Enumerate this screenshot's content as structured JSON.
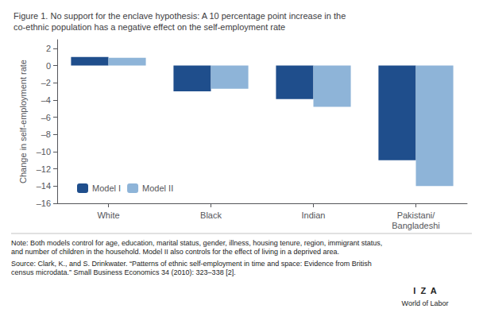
{
  "chart_data": {
    "type": "bar",
    "title": "Figure 1. No support for the enclave hypothesis: A 10 percentage point increase in the\nco-ethnic population has a negative effect on the self-employment rate",
    "ylabel": "Change in self-employment rate",
    "categories": [
      "White",
      "Black",
      "Indian",
      "Pakistani/\nBangladeshi"
    ],
    "series": [
      {
        "name": "Model I",
        "color": "#1F4E8C",
        "values": [
          1.0,
          -3.0,
          -3.9,
          -11.0
        ]
      },
      {
        "name": "Model II",
        "color": "#8EB4D8",
        "values": [
          0.9,
          -2.7,
          -4.8,
          -14.0
        ]
      }
    ],
    "ylim": [
      -16,
      3
    ],
    "yticks": [
      2,
      0,
      {
        "value": -2,
        "label": "–2"
      },
      {
        "value": -4,
        "label": "–4"
      },
      {
        "value": -6,
        "label": "–6"
      },
      {
        "value": -8,
        "label": "–8"
      },
      {
        "value": -10,
        "label": "–10"
      },
      {
        "value": -12,
        "label": "–12"
      },
      {
        "value": -14,
        "label": "–14"
      },
      {
        "value": -16,
        "label": "–16"
      }
    ],
    "grid": false,
    "legend": "lower left",
    "annotations": [
      "Note: Both models control for age, education, marital status, gender, illness, housing tenure, region, immigrant status,\nand number of children in the household. Model II also controls for the effect of living in a deprived area.",
      "Source: Clark, K., and S. Drinkwater. “Patterns of ethnic self-employment in time and space: Evidence from British\ncensus microdata.” Small Business Economics 34 (2010): 323–338 [2].",
      "I  Z  A",
      "World of Labor"
    ]
  }
}
